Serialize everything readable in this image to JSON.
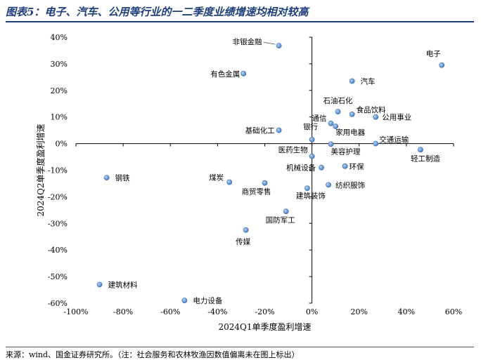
{
  "title": "图表5：电子、汽车、公用等行业的一二季度业绩增速均相对较高",
  "source": "来源：wind、国金证券研究所。（注：社会服务和农林牧渔因数值偏离未在图上标出）",
  "chart_data": {
    "type": "scatter",
    "xlabel": "2024Q1单季度盈利增速",
    "ylabel": "2024Q2单季度盈利增速",
    "xlim": [
      -100,
      60
    ],
    "ylim": [
      -60,
      40
    ],
    "x_ticks": [
      "-100%",
      "-80%",
      "-60%",
      "-40%",
      "-20%",
      "0%",
      "20%",
      "40%",
      "60%"
    ],
    "y_ticks": [
      "40%",
      "30%",
      "20%",
      "10%",
      "0%",
      "-10%",
      "-20%",
      "-30%",
      "-40%",
      "-50%",
      "-60%"
    ],
    "x_tick_values": [
      -100,
      -80,
      -60,
      -40,
      -20,
      0,
      20,
      40,
      60
    ],
    "y_tick_values": [
      40,
      30,
      20,
      10,
      0,
      -10,
      -20,
      -30,
      -40,
      -50,
      -60
    ],
    "grid": false,
    "marker_color": "#4a7fc1",
    "points": [
      {
        "label": "电子",
        "x": 55,
        "y": 29.5
      },
      {
        "label": "非银金融",
        "x": -14,
        "y": 36.8
      },
      {
        "label": "有色金属",
        "x": -29,
        "y": 26.3
      },
      {
        "label": "汽车",
        "x": 17,
        "y": 23.5
      },
      {
        "label": "石油石化",
        "x": 11,
        "y": 12
      },
      {
        "label": "食品饮料",
        "x": 17,
        "y": 11
      },
      {
        "label": "通信",
        "x": 8,
        "y": 7.6
      },
      {
        "label": "家用电器",
        "x": 10,
        "y": 6.5
      },
      {
        "label": "公用事业",
        "x": 27,
        "y": 10
      },
      {
        "label": "基础化工",
        "x": -14,
        "y": 5
      },
      {
        "label": "银行",
        "x": 0,
        "y": 1.5
      },
      {
        "label": "交通运输",
        "x": 27,
        "y": 0
      },
      {
        "label": "美容护理",
        "x": 8,
        "y": -0.2
      },
      {
        "label": "轻工制造",
        "x": 46,
        "y": -2.3
      },
      {
        "label": "医药生物",
        "x": 0,
        "y": -4.8
      },
      {
        "label": "环保",
        "x": 14,
        "y": -8.5
      },
      {
        "label": "机械设备",
        "x": 4,
        "y": -9
      },
      {
        "label": "钢铁",
        "x": -87,
        "y": -12.8
      },
      {
        "label": "煤炭",
        "x": -35,
        "y": -14.5
      },
      {
        "label": "商贸零售",
        "x": -20,
        "y": -14.8
      },
      {
        "label": "纺织服饰",
        "x": 7,
        "y": -15.5
      },
      {
        "label": "建筑装饰",
        "x": -2,
        "y": -16.8
      },
      {
        "label": "国防军工",
        "x": -11,
        "y": -25.5
      },
      {
        "label": "传媒",
        "x": -28,
        "y": -32.5
      },
      {
        "label": "建筑材料",
        "x": -90,
        "y": -53
      },
      {
        "label": "电力设备",
        "x": -54,
        "y": -59
      }
    ]
  }
}
